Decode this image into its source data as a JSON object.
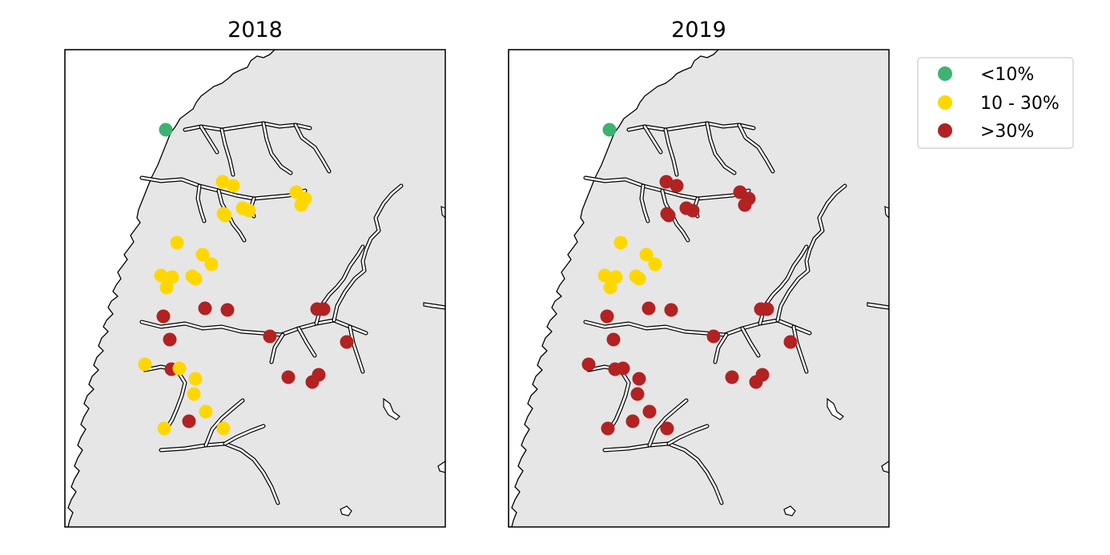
{
  "figure": {
    "panels": [
      {
        "title": "2018"
      },
      {
        "title": "2019"
      }
    ],
    "legend": [
      {
        "label": "<10%",
        "color": "#3cb371"
      },
      {
        "label": "10 - 30%",
        "color": "#ffd700"
      },
      {
        "label": ">30%",
        "color": "#b22222"
      }
    ],
    "colors": {
      "land": "#e6e6e6",
      "sea": "#ffffff",
      "coastline": "#000000"
    }
  },
  "chart_data": {
    "type": "scatter",
    "map_region": "Western Norway coastline (Vestland and neighbouring fjords)",
    "categories": [
      "<10%",
      "10 - 30%",
      ">30%"
    ],
    "panels": [
      {
        "title": "2018",
        "sites": [
          {
            "id": 1,
            "category": "<10%"
          },
          {
            "id": 2,
            "category": "10 - 30%"
          },
          {
            "id": 3,
            "category": "10 - 30%"
          },
          {
            "id": 4,
            "category": "10 - 30%"
          },
          {
            "id": 5,
            "category": "10 - 30%"
          },
          {
            "id": 6,
            "category": "10 - 30%"
          },
          {
            "id": 7,
            "category": "10 - 30%"
          },
          {
            "id": 8,
            "category": "10 - 30%"
          },
          {
            "id": 9,
            "category": "10 - 30%"
          },
          {
            "id": 10,
            "category": "10 - 30%"
          },
          {
            "id": 11,
            "category": "10 - 30%"
          },
          {
            "id": 12,
            "category": "10 - 30%"
          },
          {
            "id": 13,
            "category": "10 - 30%"
          },
          {
            "id": 14,
            "category": "10 - 30%"
          },
          {
            "id": 15,
            "category": "10 - 30%"
          },
          {
            "id": 16,
            "category": "10 - 30%"
          },
          {
            "id": 17,
            "category": "10 - 30%"
          },
          {
            "id": 18,
            "category": "10 - 30%"
          },
          {
            "id": 19,
            "category": "10 - 30%"
          },
          {
            "id": 20,
            "category": ">30%"
          },
          {
            "id": 21,
            "category": ">30%"
          },
          {
            "id": 22,
            "category": ">30%"
          },
          {
            "id": 23,
            "category": ">30%"
          },
          {
            "id": 24,
            "category": ">30%"
          },
          {
            "id": 25,
            "category": ">30%"
          },
          {
            "id": 26,
            "category": ">30%"
          },
          {
            "id": 27,
            "category": ">30%"
          },
          {
            "id": 28,
            "category": ">30%"
          },
          {
            "id": 29,
            "category": ">30%"
          },
          {
            "id": 30,
            "category": ">30%"
          },
          {
            "id": 31,
            "category": "10 - 30%"
          },
          {
            "id": 32,
            "category": ">30%"
          },
          {
            "id": 33,
            "category": "10 - 30%"
          },
          {
            "id": 34,
            "category": "10 - 30%"
          },
          {
            "id": 35,
            "category": "10 - 30%"
          },
          {
            "id": 36,
            "category": "10 - 30%"
          },
          {
            "id": 37,
            "category": ">30%"
          },
          {
            "id": 38,
            "category": "10 - 30%"
          },
          {
            "id": 39,
            "category": "10 - 30%"
          }
        ]
      },
      {
        "title": "2019",
        "sites": [
          {
            "id": 1,
            "category": "<10%"
          },
          {
            "id": 2,
            "category": ">30%"
          },
          {
            "id": 3,
            "category": ">30%"
          },
          {
            "id": 4,
            "category": ">30%"
          },
          {
            "id": 5,
            "category": ">30%"
          },
          {
            "id": 6,
            "category": ">30%"
          },
          {
            "id": 7,
            "category": ">30%"
          },
          {
            "id": 8,
            "category": ">30%"
          },
          {
            "id": 9,
            "category": ">30%"
          },
          {
            "id": 10,
            "category": ">30%"
          },
          {
            "id": 11,
            "category": "10 - 30%"
          },
          {
            "id": 12,
            "category": "10 - 30%"
          },
          {
            "id": 13,
            "category": "10 - 30%"
          },
          {
            "id": 14,
            "category": "10 - 30%"
          },
          {
            "id": 15,
            "category": "10 - 30%"
          },
          {
            "id": 16,
            "category": "10 - 30%"
          },
          {
            "id": 17,
            "category": "10 - 30%"
          },
          {
            "id": 18,
            "category": "10 - 30%"
          },
          {
            "id": 19,
            "category": "10 - 30%"
          },
          {
            "id": 20,
            "category": ">30%"
          },
          {
            "id": 21,
            "category": ">30%"
          },
          {
            "id": 22,
            "category": ">30%"
          },
          {
            "id": 23,
            "category": ">30%"
          },
          {
            "id": 24,
            "category": ">30%"
          },
          {
            "id": 25,
            "category": ">30%"
          },
          {
            "id": 26,
            "category": ">30%"
          },
          {
            "id": 27,
            "category": ">30%"
          },
          {
            "id": 28,
            "category": ">30%"
          },
          {
            "id": 29,
            "category": ">30%"
          },
          {
            "id": 30,
            "category": ">30%"
          },
          {
            "id": 31,
            "category": ">30%"
          },
          {
            "id": 32,
            "category": ">30%"
          },
          {
            "id": 33,
            "category": ">30%"
          },
          {
            "id": 34,
            "category": ">30%"
          },
          {
            "id": 35,
            "category": ">30%"
          },
          {
            "id": 36,
            "category": ">30%"
          },
          {
            "id": 37,
            "category": ">30%"
          },
          {
            "id": 38,
            "category": ">30%"
          },
          {
            "id": 39,
            "category": ">30%"
          }
        ]
      }
    ]
  }
}
